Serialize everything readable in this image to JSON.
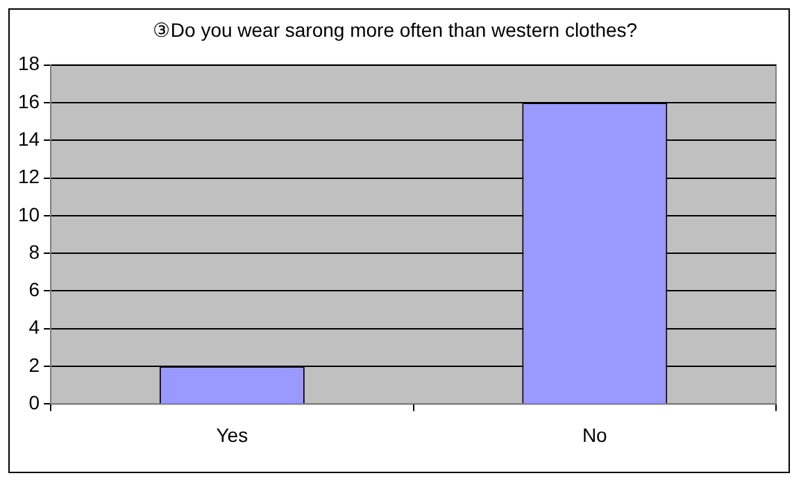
{
  "chart_data": {
    "type": "bar",
    "title": "③Do you wear sarong more often than western clothes?",
    "categories": [
      "Yes",
      "No"
    ],
    "values": [
      2,
      16
    ],
    "color": "#9999ff",
    "ylim": [
      0,
      18
    ],
    "yticks": [
      0,
      2,
      4,
      6,
      8,
      10,
      12,
      14,
      16,
      18
    ],
    "grid": "y"
  }
}
